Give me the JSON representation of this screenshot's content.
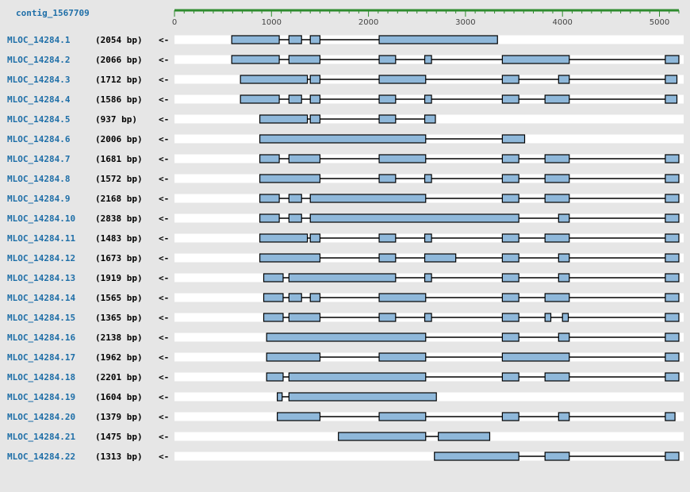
{
  "contig": {
    "name": "contig_1567709"
  },
  "ruler": {
    "ticks": [
      "0",
      "1000",
      "2000",
      "3000",
      "4000",
      "5000"
    ],
    "tick_values": [
      0,
      1000,
      2000,
      3000,
      4000,
      5000
    ],
    "max": 5200,
    "color": "#2e8b2e"
  },
  "colors": {
    "exon": "#8fb8da",
    "exon_border": "#000000",
    "intron": "#000000",
    "name": "#1f6fa8",
    "row_bg": "#ffffff"
  },
  "transcripts": [
    {
      "name": "MLOC_14284.1",
      "length": "(2054 bp)",
      "strand": "<-",
      "exons": [
        [
          590,
          1080
        ],
        [
          1180,
          1310
        ],
        [
          1400,
          1500
        ],
        [
          2110,
          3330
        ]
      ]
    },
    {
      "name": "MLOC_14284.2",
      "length": "(2066 bp)",
      "strand": "<-",
      "exons": [
        [
          590,
          1080
        ],
        [
          1180,
          1500
        ],
        [
          2110,
          2280
        ],
        [
          2580,
          2650
        ],
        [
          3380,
          4070
        ],
        [
          5060,
          5200
        ]
      ]
    },
    {
      "name": "MLOC_14284.3",
      "length": "(1712 bp)",
      "strand": "<-",
      "exons": [
        [
          680,
          1370
        ],
        [
          1400,
          1500
        ],
        [
          2110,
          2590
        ],
        [
          3380,
          3550
        ],
        [
          3960,
          4070
        ],
        [
          5060,
          5180
        ]
      ]
    },
    {
      "name": "MLOC_14284.4",
      "length": "(1586 bp)",
      "strand": "<-",
      "exons": [
        [
          680,
          1080
        ],
        [
          1180,
          1310
        ],
        [
          1400,
          1500
        ],
        [
          2110,
          2280
        ],
        [
          2580,
          2650
        ],
        [
          3380,
          3550
        ],
        [
          3820,
          4070
        ],
        [
          5060,
          5180
        ]
      ]
    },
    {
      "name": "MLOC_14284.5",
      "length": "(937 bp)",
      "strand": "<-",
      "exons": [
        [
          880,
          1370
        ],
        [
          1400,
          1500
        ],
        [
          2110,
          2280
        ],
        [
          2580,
          2690
        ]
      ]
    },
    {
      "name": "MLOC_14284.6",
      "length": "(2006 bp)",
      "strand": "<-",
      "exons": [
        [
          880,
          2590
        ],
        [
          3380,
          3610
        ]
      ]
    },
    {
      "name": "MLOC_14284.7",
      "length": "(1681 bp)",
      "strand": "<-",
      "exons": [
        [
          880,
          1080
        ],
        [
          1180,
          1500
        ],
        [
          2110,
          2590
        ],
        [
          3380,
          3550
        ],
        [
          3820,
          4070
        ],
        [
          5060,
          5200
        ]
      ]
    },
    {
      "name": "MLOC_14284.8",
      "length": "(1572 bp)",
      "strand": "<-",
      "exons": [
        [
          880,
          1500
        ],
        [
          2110,
          2280
        ],
        [
          2580,
          2650
        ],
        [
          3380,
          3550
        ],
        [
          3820,
          4070
        ],
        [
          5060,
          5200
        ]
      ]
    },
    {
      "name": "MLOC_14284.9",
      "length": "(2168 bp)",
      "strand": "<-",
      "exons": [
        [
          880,
          1080
        ],
        [
          1180,
          1310
        ],
        [
          1400,
          2590
        ],
        [
          3380,
          3550
        ],
        [
          3820,
          4070
        ],
        [
          5060,
          5200
        ]
      ]
    },
    {
      "name": "MLOC_14284.10",
      "length": "(2838 bp)",
      "strand": "<-",
      "exons": [
        [
          880,
          1080
        ],
        [
          1180,
          1310
        ],
        [
          1400,
          3550
        ],
        [
          3960,
          4070
        ],
        [
          5060,
          5200
        ]
      ]
    },
    {
      "name": "MLOC_14284.11",
      "length": "(1483 bp)",
      "strand": "<-",
      "exons": [
        [
          880,
          1370
        ],
        [
          1400,
          1500
        ],
        [
          2110,
          2280
        ],
        [
          2580,
          2650
        ],
        [
          3380,
          3550
        ],
        [
          3820,
          4070
        ],
        [
          5060,
          5200
        ]
      ]
    },
    {
      "name": "MLOC_14284.12",
      "length": "(1673 bp)",
      "strand": "<-",
      "exons": [
        [
          880,
          1500
        ],
        [
          2110,
          2280
        ],
        [
          2580,
          2900
        ],
        [
          3380,
          3550
        ],
        [
          3960,
          4070
        ],
        [
          5060,
          5200
        ]
      ]
    },
    {
      "name": "MLOC_14284.13",
      "length": "(1919 bp)",
      "strand": "<-",
      "exons": [
        [
          920,
          1120
        ],
        [
          1180,
          2280
        ],
        [
          2580,
          2650
        ],
        [
          3380,
          3550
        ],
        [
          3960,
          4070
        ],
        [
          5060,
          5200
        ]
      ]
    },
    {
      "name": "MLOC_14284.14",
      "length": "(1565 bp)",
      "strand": "<-",
      "exons": [
        [
          920,
          1120
        ],
        [
          1180,
          1310
        ],
        [
          1400,
          1500
        ],
        [
          2110,
          2590
        ],
        [
          3380,
          3550
        ],
        [
          3820,
          4070
        ],
        [
          5060,
          5200
        ]
      ]
    },
    {
      "name": "MLOC_14284.15",
      "length": "(1365 bp)",
      "strand": "<-",
      "exons": [
        [
          920,
          1120
        ],
        [
          1180,
          1500
        ],
        [
          2110,
          2280
        ],
        [
          2580,
          2650
        ],
        [
          3380,
          3550
        ],
        [
          3820,
          3880
        ],
        [
          4000,
          4060
        ],
        [
          5060,
          5200
        ]
      ]
    },
    {
      "name": "MLOC_14284.16",
      "length": "(2138 bp)",
      "strand": "<-",
      "exons": [
        [
          950,
          2590
        ],
        [
          3380,
          3550
        ],
        [
          3960,
          4070
        ],
        [
          5060,
          5200
        ]
      ]
    },
    {
      "name": "MLOC_14284.17",
      "length": "(1962 bp)",
      "strand": "<-",
      "exons": [
        [
          950,
          1500
        ],
        [
          2110,
          2590
        ],
        [
          3380,
          4070
        ],
        [
          5060,
          5200
        ]
      ]
    },
    {
      "name": "MLOC_14284.18",
      "length": "(2201 bp)",
      "strand": "<-",
      "exons": [
        [
          950,
          1120
        ],
        [
          1180,
          2590
        ],
        [
          3380,
          3550
        ],
        [
          3820,
          4070
        ],
        [
          5060,
          5200
        ]
      ]
    },
    {
      "name": "MLOC_14284.19",
      "length": "(1604 bp)",
      "strand": "<-",
      "exons": [
        [
          1060,
          1110
        ],
        [
          1180,
          2700
        ]
      ]
    },
    {
      "name": "MLOC_14284.20",
      "length": "(1379 bp)",
      "strand": "<-",
      "exons": [
        [
          1060,
          1500
        ],
        [
          2110,
          2590
        ],
        [
          3380,
          3550
        ],
        [
          3960,
          4070
        ],
        [
          5060,
          5160
        ]
      ]
    },
    {
      "name": "MLOC_14284.21",
      "length": "(1475 bp)",
      "strand": "<-",
      "exons": [
        [
          1690,
          2590
        ],
        [
          2720,
          3250
        ]
      ]
    },
    {
      "name": "MLOC_14284.22",
      "length": "(1313 bp)",
      "strand": "<-",
      "exons": [
        [
          2680,
          3550
        ],
        [
          3820,
          4070
        ],
        [
          5060,
          5200
        ]
      ]
    }
  ]
}
